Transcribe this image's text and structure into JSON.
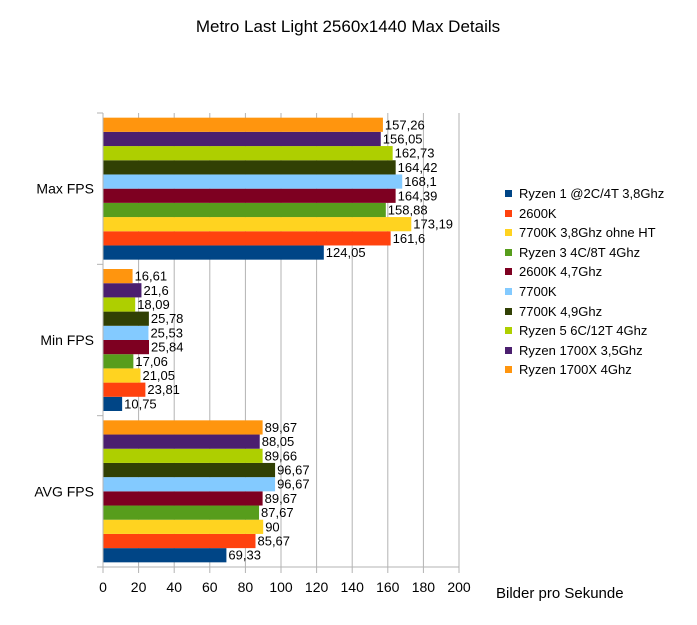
{
  "chart_data": {
    "type": "bar",
    "orientation": "horizontal",
    "title": "Metro Last Light 2560x1440 Max Details",
    "xlabel": "Bilder pro Sekunde",
    "ylabel": "",
    "xlim": [
      0,
      200
    ],
    "xticks": [
      0,
      20,
      40,
      60,
      80,
      100,
      120,
      140,
      160,
      180,
      200
    ],
    "grid": true,
    "legend_position": "right",
    "categories": [
      "Max FPS",
      "Min FPS",
      "AVG FPS"
    ],
    "series": [
      {
        "name": "Ryzen 1 @2C/4T 3,8Ghz",
        "color": "#004586",
        "values": [
          124.05,
          10.75,
          69.33
        ],
        "labels": [
          "124,05",
          "10,75",
          "69,33"
        ]
      },
      {
        "name": "2600K",
        "color": "#ff420e",
        "values": [
          161.6,
          23.81,
          85.67
        ],
        "labels": [
          "161,6",
          "23,81",
          "85,67"
        ]
      },
      {
        "name": "7700K 3,8Ghz ohne HT",
        "color": "#ffd320",
        "values": [
          173.19,
          21.05,
          90
        ],
        "labels": [
          "173,19",
          "21,05",
          "90"
        ]
      },
      {
        "name": "Ryzen 3 4C/8T 4Ghz",
        "color": "#579d1c",
        "values": [
          158.88,
          17.06,
          87.67
        ],
        "labels": [
          "158,88",
          "17,06",
          "87,67"
        ]
      },
      {
        "name": "2600K 4,7Ghz",
        "color": "#7e0021",
        "values": [
          164.39,
          25.84,
          89.67
        ],
        "labels": [
          "164,39",
          "25,84",
          "89,67"
        ]
      },
      {
        "name": "7700K",
        "color": "#83caff",
        "values": [
          168.1,
          25.53,
          96.67
        ],
        "labels": [
          "168,1",
          "25,53",
          "96,67"
        ]
      },
      {
        "name": "7700K 4,9Ghz",
        "color": "#314004",
        "values": [
          164.42,
          25.78,
          96.67
        ],
        "labels": [
          "164,42",
          "25,78",
          "96,67"
        ]
      },
      {
        "name": "Ryzen 5 6C/12T 4Ghz",
        "color": "#aecf00",
        "values": [
          162.73,
          18.09,
          89.66
        ],
        "labels": [
          "162,73",
          "18,09",
          "89,66"
        ]
      },
      {
        "name": "Ryzen 1700X 3,5Ghz",
        "color": "#4b1f6f",
        "values": [
          156.05,
          21.6,
          88.05
        ],
        "labels": [
          "156,05",
          "21,6",
          "88,05"
        ]
      },
      {
        "name": "Ryzen 1700X 4Ghz",
        "color": "#ff950e",
        "values": [
          157.26,
          16.61,
          89.67
        ],
        "labels": [
          "157,26",
          "16,61",
          "89,67"
        ]
      }
    ]
  }
}
